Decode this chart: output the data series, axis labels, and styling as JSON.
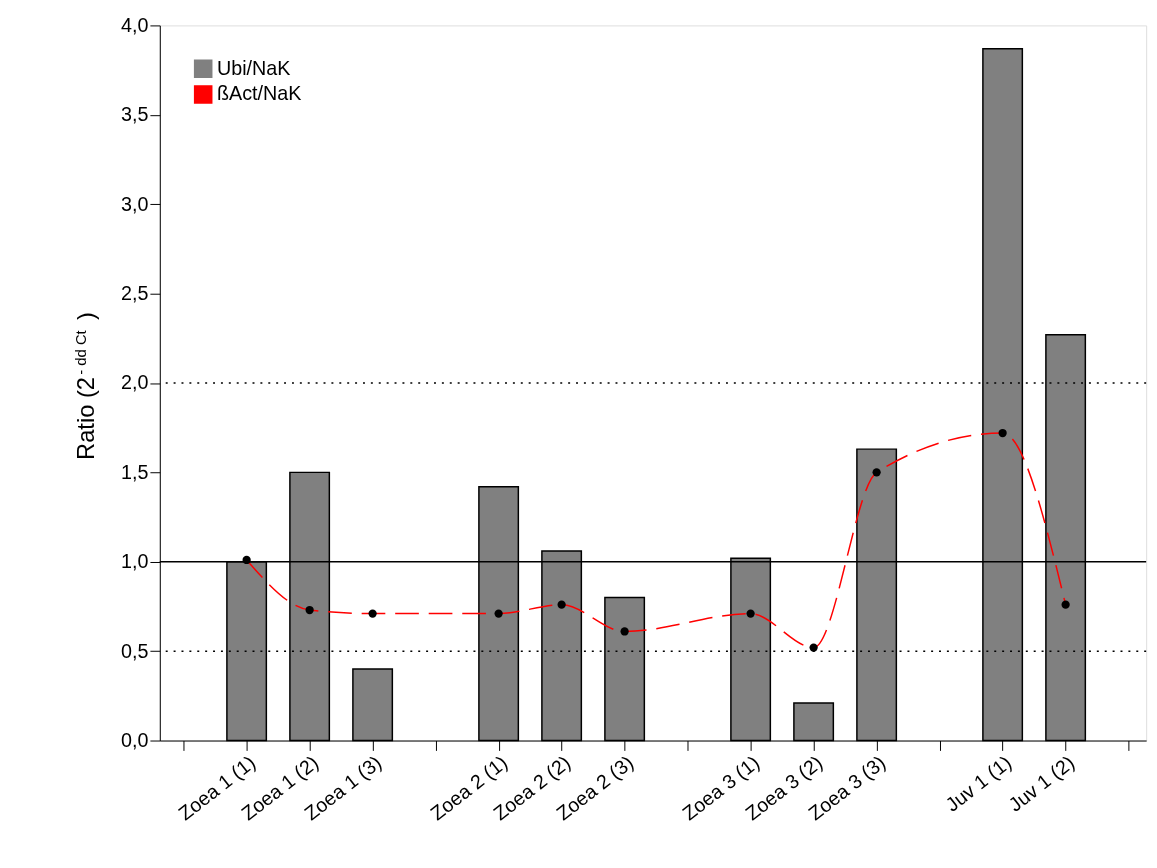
{
  "chart_data": {
    "type": "bar",
    "ylabel": "Ratio (2$^{- dd Ct}$)",
    "categories": [
      null,
      "Zoea 1 (1)",
      "Zoea 1 (2)",
      "Zoea 1 (3)",
      null,
      "Zoea 2 (1)",
      "Zoea 2 (2)",
      "Zoea 2 (3)",
      null,
      "Zoea 3 (1)",
      "Zoea 3 (2)",
      "Zoea 3 (3)",
      null,
      "Juv 1 (1)",
      "Juv 1 (2)",
      null
    ],
    "series": [
      {
        "name": "Ubi/NaK",
        "color": "#808080",
        "values": [
          null,
          1.0,
          1.5,
          0.4,
          null,
          1.42,
          1.06,
          0.8,
          null,
          1.02,
          0.21,
          1.63,
          null,
          3.87,
          2.27,
          null
        ]
      },
      {
        "name": "ßAct/NaK",
        "type": "line",
        "color": "#ff0000",
        "marker": "circle",
        "line_style": "dashed",
        "values": [
          null,
          1.01,
          0.73,
          0.71,
          null,
          0.71,
          0.76,
          0.61,
          null,
          0.71,
          0.52,
          1.5,
          null,
          1.72,
          0.76,
          null
        ]
      }
    ],
    "ylim": [
      0,
      4.0
    ],
    "yticks": [
      {
        "value": 0,
        "label": "0,0"
      },
      {
        "value": 0.5,
        "label": "0,5"
      },
      {
        "value": 1.0,
        "label": "1,0"
      },
      {
        "value": 1.5,
        "label": "1,5"
      },
      {
        "value": 2.0,
        "label": "2,0"
      },
      {
        "value": 2.5,
        "label": "2,5"
      },
      {
        "value": 3.0,
        "label": "3,0"
      },
      {
        "value": 3.5,
        "label": "3,5"
      },
      {
        "value": 4.0,
        "label": "4,0"
      }
    ],
    "ref_lines": [
      {
        "axis": "y",
        "value": 0.5,
        "color": "#000000",
        "line_style": "dotted"
      },
      {
        "axis": "y",
        "value": 1.0,
        "color": "#000000",
        "line_style": "solid"
      },
      {
        "axis": "y",
        "value": 2.0,
        "color": "#000000",
        "line_style": "dotted"
      }
    ],
    "grid": false,
    "legend": "top left"
  }
}
